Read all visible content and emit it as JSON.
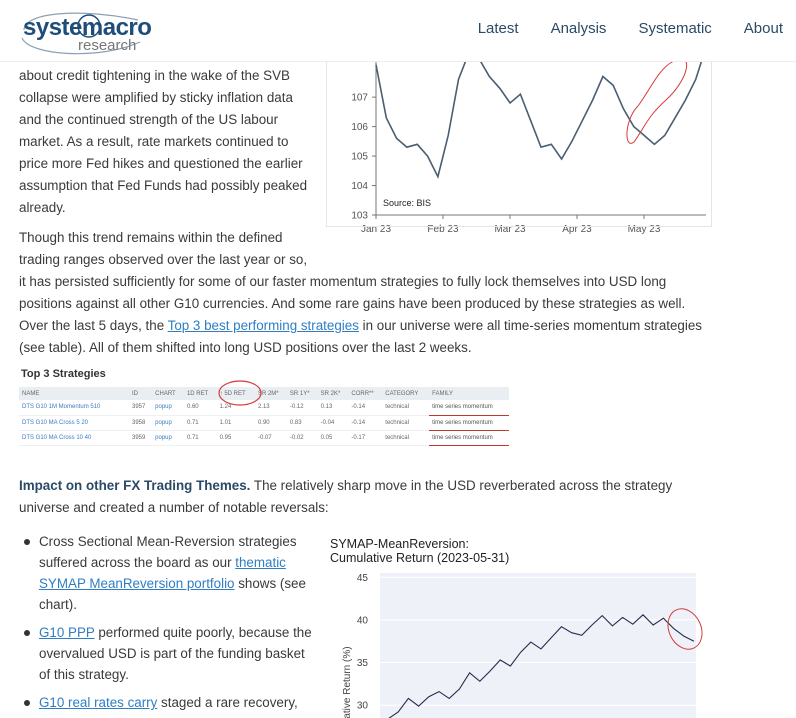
{
  "header": {
    "logo_main": "systemacro",
    "logo_sub": "research",
    "nav": [
      "Latest",
      "Analysis",
      "Systematic",
      "About"
    ]
  },
  "intro": {
    "lines": [
      "about credit tightening in the wake of the SVB",
      "collapse were amplified by sticky inflation data",
      "and the continued strength of the US labour",
      "market. As a result, rate markets continued to",
      "price more Fed hikes and questioned the earlier",
      "assumption that Fed Funds had possibly peaked",
      "already."
    ]
  },
  "para2": {
    "line1": "Though this trend remains within the defined",
    "line2": "trading ranges observed over the last year or so,",
    "line3": "it has persisted sufficiently for some of our faster momentum strategies to fully lock themselves into USD long",
    "line4": "positions against all other G10 currencies. And some rare gains have been produced by these strategies as well.",
    "line5_pre": "Over the last 5 days, the ",
    "line5_link": "Top 3 best performing strategies",
    "line5_post": " in our universe were all time-series momentum strategies",
    "line6": "(see table). All of them shifted into long USD positions over the last 2 weeks."
  },
  "strategies": {
    "title": "Top 3 Strategies",
    "columns": [
      "NAME",
      "ID",
      "CHART",
      "1D RET",
      "↑ 5D RET",
      "SR 2M*",
      "SR 1Y*",
      "SR 2K*",
      "CORR**",
      "CATEGORY",
      "FAMILY"
    ],
    "rows": [
      [
        "DTS G10 1M Momentum 510",
        "3957",
        "popup",
        "0.60",
        "1.24",
        "2.13",
        "-0.12",
        "0.13",
        "-0.14",
        "technical",
        "time series momentum"
      ],
      [
        "DTS G10 MA Cross 5 20",
        "3958",
        "popup",
        "0.71",
        "1.01",
        "0.90",
        "0.83",
        "-0.04",
        "-0.14",
        "technical",
        "time series momentum"
      ],
      [
        "DTS G10 MA Cross 10 40",
        "3959",
        "popup",
        "0.71",
        "0.95",
        "-0.07",
        "-0.02",
        "0.05",
        "-0.17",
        "technical",
        "time series momentum"
      ]
    ]
  },
  "impact": {
    "heading": "Impact on other FX Trading Themes.",
    "text1": " The relatively sharp move in the USD reverberated across the strategy",
    "text2": "universe and created a number of notable reversals:"
  },
  "bullets": {
    "b1": {
      "l1": "Cross Sectional Mean-Reversion strategies",
      "l2_pre": "suffered across the board as our ",
      "l2_link": "thematic",
      "l3_link": "SYMAP MeanReversion portfolio",
      "l3_post": " shows (see",
      "l4": "chart)."
    },
    "b2": {
      "link": "G10 PPP",
      "l1_post": " performed quite poorly, because the",
      "l2": "overvalued USD is part of the funding basket",
      "l3": "of this strategy."
    },
    "b3": {
      "link": "G10 real rates carry",
      "l1_post": " staged a rare recovery,"
    }
  },
  "chart_data": [
    {
      "type": "line",
      "source": "Source: BIS",
      "x_ticks": [
        "Jan 23",
        "Feb 23",
        "Mar 23",
        "Apr 23",
        "May 23"
      ],
      "y_ticks": [
        103,
        104,
        105,
        106,
        107
      ],
      "ylim": [
        103,
        108.6
      ],
      "x": [
        0,
        5,
        10,
        15,
        20,
        25,
        30,
        35,
        40,
        45,
        50,
        55,
        60,
        65,
        70,
        75,
        80,
        85,
        90,
        95,
        100,
        105,
        110,
        115,
        120,
        125,
        130,
        135,
        140,
        145,
        150,
        155,
        160
      ],
      "values": [
        108.1,
        106.3,
        105.6,
        105.3,
        105.4,
        105.0,
        104.3,
        105.7,
        107.6,
        108.5,
        108.3,
        107.7,
        107.3,
        106.8,
        107.1,
        106.2,
        105.3,
        105.4,
        104.9,
        105.5,
        106.2,
        106.9,
        107.7,
        107.4,
        106.6,
        106.0,
        105.7,
        105.4,
        105.7,
        106.3,
        106.9,
        107.6,
        108.7
      ],
      "colors": {
        "line": "#4a5e72",
        "annotation": "#d63b3b"
      }
    },
    {
      "type": "line",
      "title": "SYMAP-MeanReversion:",
      "subtitle": "Cumulative Return (2023-05-31)",
      "ylabel": "Cumulative Return (%)",
      "y_ticks": [
        30,
        35,
        40,
        45
      ],
      "ylim": [
        28.5,
        45.5
      ],
      "x": [
        0,
        1,
        2,
        3,
        4,
        5,
        6,
        7,
        8,
        9,
        10,
        11,
        12,
        13,
        14,
        15,
        16,
        17,
        18,
        19,
        20,
        21,
        22,
        23,
        24,
        25,
        26,
        27,
        28,
        29,
        30
      ],
      "values": [
        28.4,
        29.2,
        30.8,
        29.9,
        31.0,
        31.6,
        30.8,
        31.9,
        33.8,
        32.8,
        34.0,
        35.3,
        34.6,
        36.2,
        37.4,
        36.6,
        37.9,
        39.2,
        38.5,
        38.2,
        39.4,
        40.5,
        39.3,
        40.3,
        39.5,
        40.6,
        39.4,
        40.2,
        39.0,
        38.1,
        37.5
      ],
      "colors": {
        "line": "#2b2b4f",
        "background": "#eef2f8",
        "annotation": "#d63b3b"
      }
    }
  ]
}
